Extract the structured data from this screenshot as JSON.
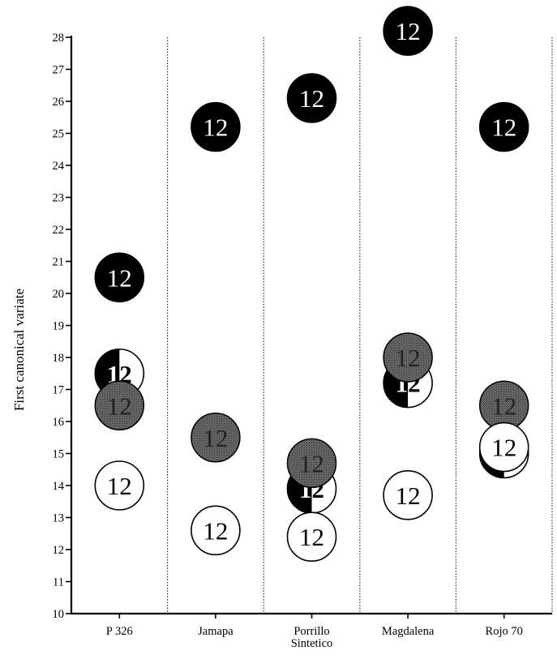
{
  "chart_data": {
    "type": "scatter",
    "ylabel": "First  canonical variate",
    "xlabel": "",
    "title": "",
    "categories": [
      "P 326",
      "Jamapa",
      "Porrillo\nSintetico",
      "Magdalena",
      "Rojo 70"
    ],
    "ylim": [
      10,
      28
    ],
    "y_ticks": [
      10,
      11,
      12,
      13,
      14,
      15,
      16,
      17,
      18,
      19,
      20,
      21,
      22,
      23,
      24,
      25,
      26,
      27,
      28
    ],
    "marker_label": "12",
    "colors": {
      "black": "#000000",
      "gray": "#555555",
      "white": "#ffffff",
      "divider": "#333333"
    },
    "series": [
      {
        "style": "black",
        "values": [
          20.5,
          25.2,
          26.1,
          28.2,
          25.2
        ]
      },
      {
        "style": "half-black-half-white",
        "values": [
          17.5,
          null,
          13.9,
          17.2,
          15.0
        ]
      },
      {
        "style": "gray",
        "values": [
          16.5,
          15.5,
          14.7,
          18.0,
          16.5
        ]
      },
      {
        "style": "white",
        "values": [
          14.0,
          12.6,
          12.4,
          13.7,
          15.2
        ]
      }
    ]
  }
}
